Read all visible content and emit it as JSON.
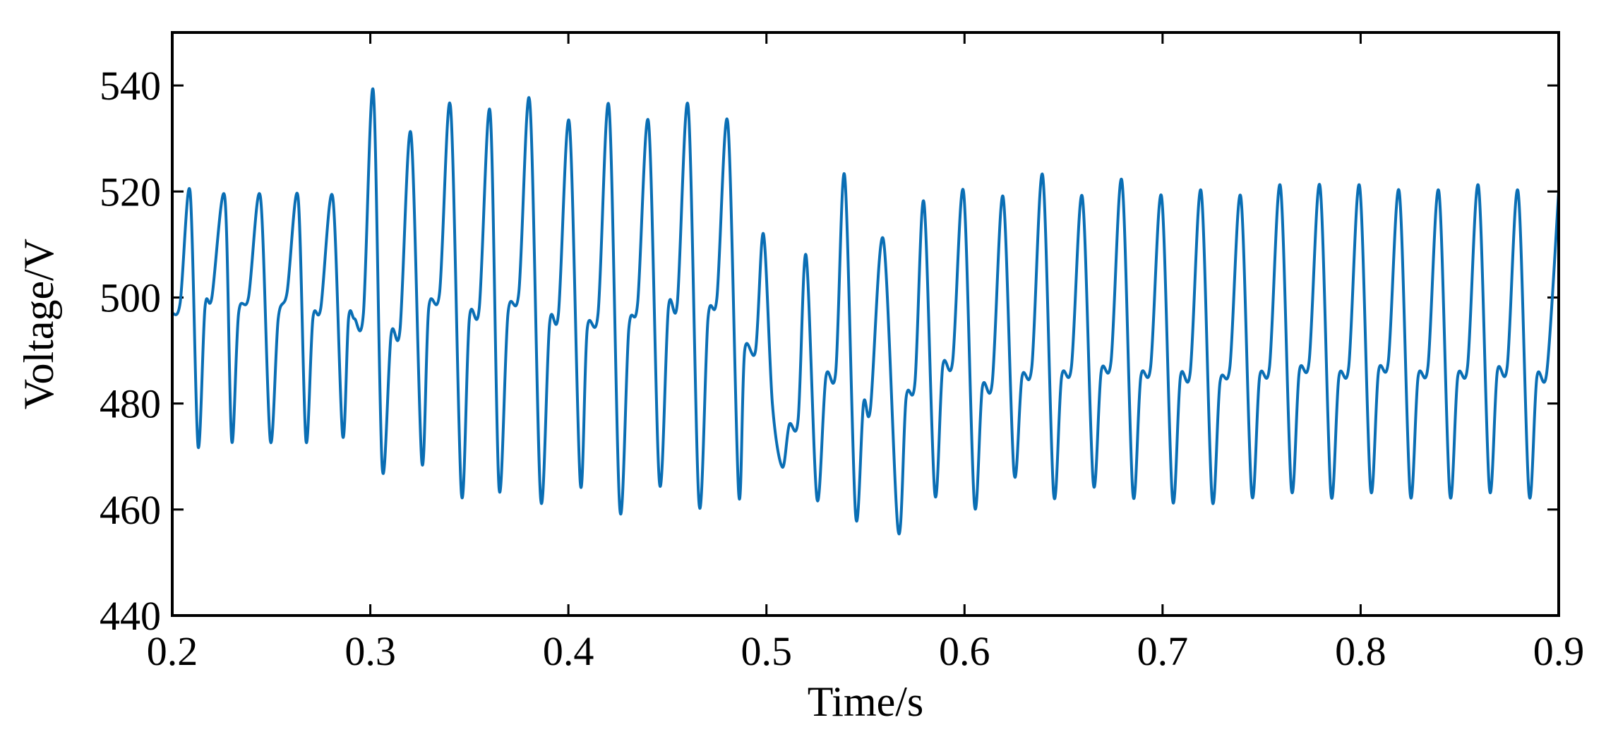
{
  "chart_data": {
    "type": "line",
    "title": "",
    "xlabel": "Time/s",
    "ylabel": "Voltage/V",
    "xlim": [
      0.2,
      0.9
    ],
    "ylim": [
      440,
      550
    ],
    "xticks": [
      0.2,
      0.3,
      0.4,
      0.5,
      0.6,
      0.7,
      0.8,
      0.9
    ],
    "xtick_labels": [
      "0.2",
      "0.3",
      "0.4",
      "0.5",
      "0.6",
      "0.7",
      "0.8",
      "0.9"
    ],
    "yticks": [
      440,
      460,
      480,
      500,
      520,
      540
    ],
    "ytick_labels": [
      "440",
      "460",
      "480",
      "500",
      "520",
      "540"
    ],
    "grid": false,
    "legend": "none",
    "series": [
      {
        "color": "#0a6eb4",
        "x": [
          0.2,
          0.204,
          0.209,
          0.213,
          0.2165,
          0.22,
          0.2265,
          0.23,
          0.2335,
          0.2385,
          0.2445,
          0.2495,
          0.2535,
          0.258,
          0.2635,
          0.2675,
          0.271,
          0.275,
          0.281,
          0.286,
          0.289,
          0.292,
          0.2965,
          0.3015,
          0.306,
          0.3105,
          0.315,
          0.3205,
          0.326,
          0.3295,
          0.335,
          0.3405,
          0.346,
          0.35,
          0.355,
          0.3605,
          0.365,
          0.3695,
          0.375,
          0.3805,
          0.386,
          0.3905,
          0.395,
          0.4005,
          0.406,
          0.4095,
          0.415,
          0.4205,
          0.426,
          0.4305,
          0.435,
          0.4405,
          0.446,
          0.4505,
          0.455,
          0.4605,
          0.466,
          0.4705,
          0.475,
          0.4805,
          0.486,
          0.489,
          0.4945,
          0.4985,
          0.503,
          0.508,
          0.5115,
          0.516,
          0.52,
          0.5255,
          0.53,
          0.535,
          0.5395,
          0.545,
          0.549,
          0.5525,
          0.559,
          0.5665,
          0.5705,
          0.575,
          0.5795,
          0.585,
          0.589,
          0.594,
          0.5995,
          0.605,
          0.609,
          0.614,
          0.6195,
          0.625,
          0.629,
          0.634,
          0.6395,
          0.645,
          0.649,
          0.654,
          0.6595,
          0.665,
          0.669,
          0.674,
          0.6795,
          0.685,
          0.689,
          0.694,
          0.6995,
          0.705,
          0.709,
          0.714,
          0.7195,
          0.725,
          0.729,
          0.734,
          0.7395,
          0.745,
          0.749,
          0.754,
          0.7595,
          0.765,
          0.769,
          0.774,
          0.7795,
          0.785,
          0.789,
          0.794,
          0.7995,
          0.805,
          0.809,
          0.814,
          0.8195,
          0.825,
          0.829,
          0.834,
          0.8395,
          0.845,
          0.849,
          0.854,
          0.8595,
          0.865,
          0.869,
          0.874,
          0.8795,
          0.885,
          0.889,
          0.894,
          0.9
        ],
        "y": [
          497,
          499,
          520,
          472,
          498,
          500,
          519,
          473,
          497,
          500,
          519,
          473,
          496,
          501,
          519,
          473,
          496,
          498,
          519,
          474,
          496,
          496,
          497,
          539,
          468,
          493,
          494,
          531,
          469,
          498,
          501,
          536,
          463,
          496,
          498,
          535,
          464,
          497,
          501,
          537,
          462,
          495,
          497,
          533,
          465,
          494,
          497,
          536,
          460,
          494,
          499,
          533,
          465,
          498,
          499,
          536,
          461,
          496,
          500,
          533,
          463,
          490,
          490,
          512,
          480,
          468,
          476,
          477,
          508,
          462,
          485,
          486,
          523,
          459,
          480,
          479,
          511,
          456,
          481,
          484,
          518,
          463,
          487,
          488,
          520,
          461,
          483,
          484,
          519,
          467,
          485,
          487,
          523,
          463,
          485,
          487,
          519,
          465,
          486,
          488,
          522,
          463,
          485,
          487,
          519,
          462,
          485,
          486,
          520,
          462,
          484,
          487,
          519,
          463,
          485,
          487,
          521,
          464,
          486,
          488,
          521,
          463,
          485,
          487,
          521,
          464,
          486,
          488,
          520,
          463,
          485,
          487,
          520,
          463,
          485,
          487,
          521,
          464,
          486,
          487,
          520,
          463,
          485,
          486,
          520
        ]
      }
    ]
  }
}
